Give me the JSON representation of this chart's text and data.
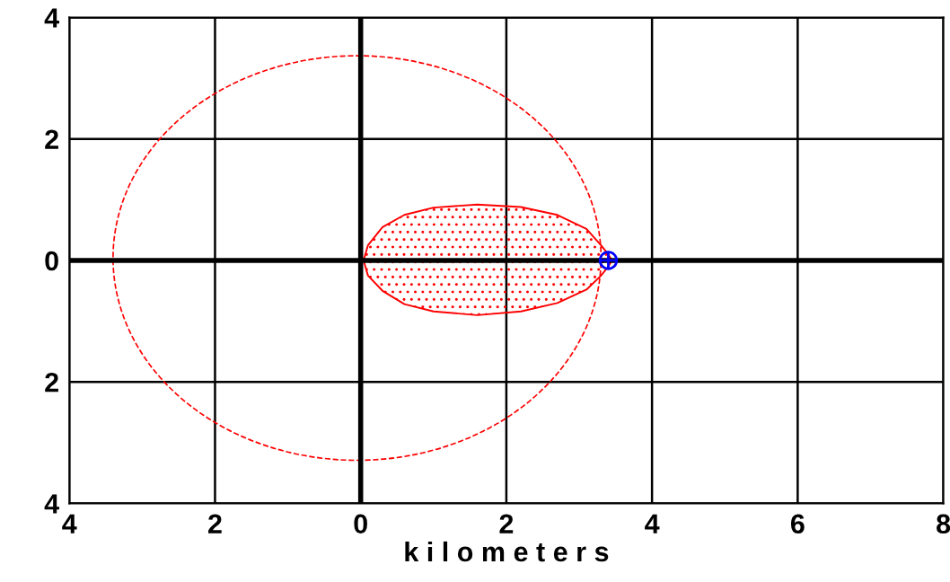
{
  "chart_data": {
    "type": "area",
    "xlabel": "k i l o m e t e r s",
    "xlim": [
      -4,
      8
    ],
    "ylim": [
      -4,
      4
    ],
    "xticks": [
      {
        "value": -4,
        "label": "4"
      },
      {
        "value": -2,
        "label": "2"
      },
      0,
      2,
      4,
      6,
      8
    ],
    "yticks": [
      {
        "value": -4,
        "label": "4"
      },
      {
        "value": -2,
        "label": "2"
      },
      0,
      2,
      4
    ],
    "grid": true,
    "series": [
      {
        "line_style": "solid",
        "color": "#ff0000",
        "x": [
          0.04,
          0.1,
          0.3,
          0.6,
          1.0,
          1.6,
          2.2,
          2.7,
          3.1,
          3.3,
          3.4,
          3.45,
          3.4,
          3.3,
          3.1,
          2.7,
          2.2,
          1.6,
          1.0,
          0.6,
          0.3,
          0.1,
          0.04
        ],
        "values": [
          0,
          0.25,
          0.55,
          0.75,
          0.87,
          0.92,
          0.88,
          0.75,
          0.52,
          0.25,
          0.1,
          0,
          -0.1,
          -0.25,
          -0.48,
          -0.7,
          -0.84,
          -0.9,
          -0.84,
          -0.72,
          -0.5,
          -0.25,
          0
        ]
      },
      {
        "type": "scatter",
        "marker": "circle",
        "color": "#0000ff",
        "x": [
          3.4
        ],
        "values": [
          0
        ]
      }
    ]
  }
}
